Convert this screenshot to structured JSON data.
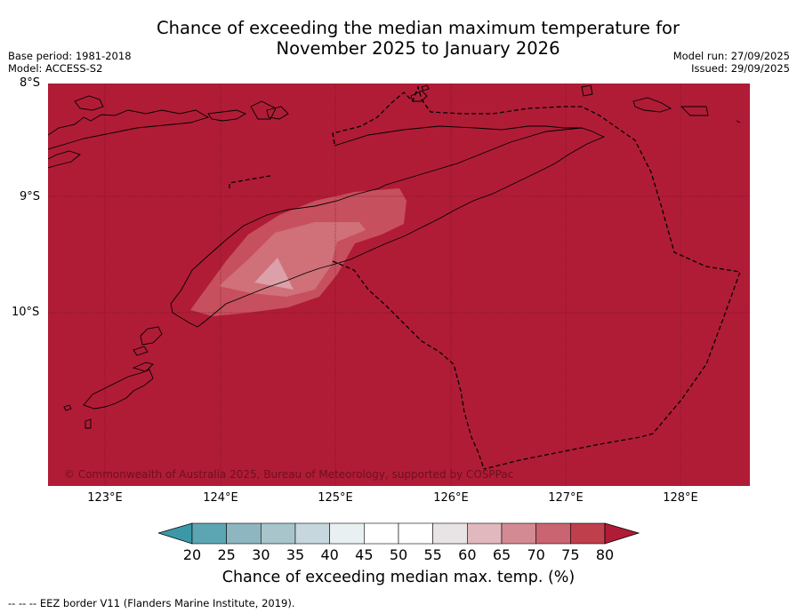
{
  "title": {
    "line1": "Chance of exceeding the median maximum temperature for",
    "line2": "November 2025 to January 2026"
  },
  "meta": {
    "base_period": "Base period: 1981-2018",
    "model": "Model: ACCESS-S2",
    "model_run": "Model run: 27/09/2025",
    "issued": "Issued: 29/09/2025"
  },
  "axes": {
    "lat_labels": [
      "8°S",
      "9°S",
      "10°S"
    ],
    "lon_labels": [
      "123°E",
      "124°E",
      "125°E",
      "126°E",
      "127°E",
      "128°E"
    ]
  },
  "map": {
    "background_value_range": "80+",
    "anomaly_regions": [
      {
        "range": "75–80",
        "color": "#c7505e"
      },
      {
        "range": "70–75",
        "color": "#d07079"
      },
      {
        "range": "65–70",
        "color": "#dba0a8"
      }
    ],
    "copyright": "© Commonwealth of Australia 2025, Bureau of Meteorology, supported by COSPPac"
  },
  "colorbar": {
    "ticks": [
      "20",
      "25",
      "30",
      "35",
      "40",
      "45",
      "50",
      "55",
      "60",
      "65",
      "70",
      "75",
      "80"
    ],
    "colors": [
      "#5ba6b2",
      "#8eb6c0",
      "#a9c5cc",
      "#c6d8de",
      "#e9f0f2",
      "#ffffff",
      "#ffffff",
      "#e8e4e5",
      "#e0b8be",
      "#d38a93",
      "#c96470",
      "#bf3f4d"
    ],
    "under_color": "#3c98a6",
    "over_color": "#b01c36",
    "label": "Chance of exceeding median max. temp. (%)"
  },
  "footnote": "--  --  -- EEZ border V11 (Flanders Marine Institute, 2019)."
}
